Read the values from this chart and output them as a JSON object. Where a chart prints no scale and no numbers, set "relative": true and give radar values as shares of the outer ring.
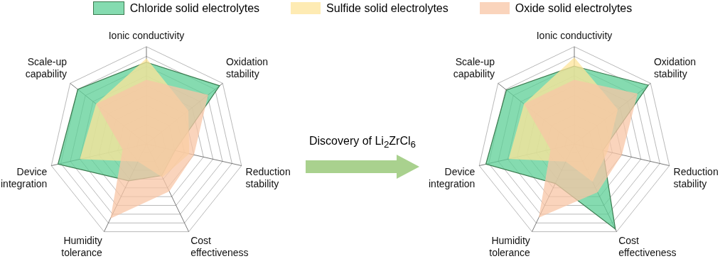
{
  "chart_data": [
    {
      "type": "radar",
      "relative": true,
      "legend": "top",
      "categories": [
        "Ionic conductivity",
        "Oxidation\nstability",
        "Reduction\nstability",
        "Cost\neffectiveness",
        "Humidity\ntolerance",
        "Device\nintegration",
        "Scale-up\ncapability"
      ],
      "series": [
        {
          "name": "Chloride solid electrolytes",
          "color": "#5ccf95",
          "values": [
            0.84,
            0.96,
            0.3,
            0.36,
            0.42,
            0.93,
            0.9
          ]
        },
        {
          "name": "Sulfide solid electrolytes",
          "color": "#fde49a",
          "values": [
            0.88,
            0.55,
            0.45,
            0.38,
            0.2,
            0.7,
            0.66
          ]
        },
        {
          "name": "Oxide solid electrolytes",
          "color": "#f8c6a6",
          "values": [
            0.66,
            0.81,
            0.5,
            0.54,
            0.85,
            0.25,
            0.66
          ]
        }
      ]
    },
    {
      "type": "radar",
      "relative": true,
      "annotations": [
        "Discovery of Li$_{2}$ZrCl$_{6}$"
      ],
      "categories": [
        "Ionic conductivity",
        "Oxidation\nstability",
        "Reduction\nstability",
        "Cost\neffectiveness",
        "Humidity\ntolerance",
        "Device\nintegration",
        "Scale-up\ncapability"
      ],
      "series": [
        {
          "color": "#5ccf95",
          "values": [
            0.8,
            0.97,
            0.3,
            0.97,
            0.45,
            0.93,
            0.89
          ]
        },
        {
          "color": "#fde49a",
          "values": [
            0.89,
            0.57,
            0.35,
            0.43,
            0.2,
            0.69,
            0.66
          ]
        },
        {
          "color": "#f8c6a6",
          "values": [
            0.66,
            0.83,
            0.5,
            0.55,
            0.84,
            0.25,
            0.66
          ]
        }
      ]
    }
  ]
}
